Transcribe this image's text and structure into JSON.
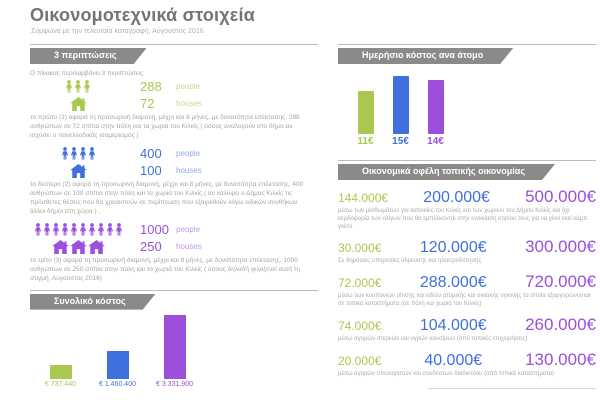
{
  "page": {
    "title": "Οικονομοτεχνικά στοιχεία",
    "subtitle": "Σύμφωνα με την τελευταία καταγραφή, Αύγουστος 2016"
  },
  "colors": {
    "green": "#aac84f",
    "blue": "#4070dd",
    "purple": "#9b4fdc",
    "banner_gray": "#8a8a8a",
    "body_text_gray": "#a5a5a5"
  },
  "sections": {
    "cases_header": "3 περιπτώσεις",
    "intro": "Ο πίνακας περιλαμβάνει 3 περιπτώσεις",
    "cases": [
      {
        "people": "288",
        "people_unit": "people",
        "houses": "72",
        "houses_unit": "houses",
        "people_icons": 3,
        "house_icons": 1,
        "color": "#aac84f",
        "unit_color": "#c8d894",
        "icon_color": "#aac84f",
        "description": "το πρώτο (1) αφορά τη προσωρινή διαμονή, μέχρι και 8 μήνες, με δυνατότητα επέκτασης, 288 ανθρώπων σε 72 σπίτια στην πόλη και τα χωριά του Κιλκίς ( όσους αναλογούν στο δήμο αν ισχύσει ο πανελλαδικός ισομερισμός )"
      },
      {
        "people": "400",
        "people_unit": "people",
        "houses": "100",
        "houses_unit": "houses",
        "people_icons": 4,
        "house_icons": 1,
        "color": "#4070dd",
        "unit_color": "#92abe8",
        "icon_color": "#4070dd",
        "description": "το δεύτερο (2) αφορά τη προσωρινή διαμονή, μέχρι και 8 μήνες, με δυνατότητα επέκτασης, 400 ανθρώπων σε 100 σπίτια στην πόλη και τα χωριά του Κιλκίς ( αν καλύψει ο Δήμος Κιλκίς τις πρόσθετες θέσεις που θα χρειαστούν σε περίπτωση που εξαιρεθούν λόγω ειδικών συνθήκων άλλοι δήμοι στη χώρα ) ,"
      },
      {
        "people": "1000",
        "people_unit": "people",
        "houses": "250",
        "houses_unit": "houses",
        "people_icons": 10,
        "house_icons": 3,
        "color": "#9b4fdc",
        "unit_color": "#c49ae8",
        "icon_color": "#9b4fdc",
        "description": "το τρίτο (3) αφορά τη προσωρινή διαμονή, μέχρι και 8 μήνες, με δυνατότητα επέκτασης, 1000 ανθρώπων σε 250 σπίτια στην πόλη και τα χωριά του Κιλκίς ( όσους δηλαδή φιλοξενεί αυτή τη στιγμή, Αυγούστος 2016)"
      }
    ],
    "total_cost_header": "Συνολικό κόστος",
    "daily_cost_header": "Ημερήσιο κόστος ανα άτομο",
    "benefits_header": "Οικονομικά οφέλη τοπικής οικονομίας"
  },
  "chart_data": [
    {
      "type": "bar",
      "title": "Συνολικό κόστος",
      "values": [
        737440,
        1460400,
        3331900
      ],
      "labels": [
        "€ 737.440",
        "€ 1.460.400",
        "€ 3.331.900"
      ],
      "colors": [
        "#aac84f",
        "#4070dd",
        "#9b4fdc"
      ],
      "ylim": [
        0,
        3331900
      ],
      "legend": "none",
      "grid": false
    },
    {
      "type": "bar",
      "title": "Ημερήσιο κόστος ανα άτομο",
      "values": [
        11,
        15,
        14
      ],
      "labels": [
        "11€",
        "15€",
        "14€"
      ],
      "colors": [
        "#aac84f",
        "#4070dd",
        "#9b4fdc"
      ],
      "ylim": [
        0,
        15
      ],
      "legend": "none",
      "grid": false
    },
    {
      "type": "table",
      "title": "Οικονομικά οφέλη τοπικής οικονομίας",
      "colors": [
        "#aac84f",
        "#4070dd",
        "#9b4fdc"
      ],
      "rows": [
        {
          "values": [
            "144.000€",
            "200.000€",
            "500.000€"
          ],
          "description": "μέσω των μισθωμάτων για κατοικίες του Κιλκίς και των χωριών του Δήμου Κιλκίς και όχι κερδοφορία των ολίγων που θα εμπλέκονται στην ενοικίαση κτιρίου τους για να γίνει εκεί κάμπ γκέτο"
        },
        {
          "values": [
            "30.000€",
            "120.000€",
            "300.000€"
          ],
          "description": "Σε δημόσιες υπηρεσίες ύδρευσης και ηλεκτροδότησης"
        },
        {
          "values": [
            "72.000€",
            "288.000€",
            "720.000€"
          ],
          "description": "μέσω των κουπονιών σίτισης και ειδών ατομικής και οικιακής υγιεινής τα οποία εξαργυρώνονται σε τοπικά καταστήματα (σε πόλη και χωριά του Κιλκίς)"
        },
        {
          "values": [
            "74.000€",
            "104.000€",
            "260.000€"
          ],
          "description": "μέσω αγορών στερεών και υγρών καυσίμων (από τοπικές επιχειρήσεις)"
        },
        {
          "values": [
            "20.000€",
            "40.000€",
            "130.000€"
          ],
          "description": "μέσω αγορών υπολογιστών και συνδέσεων διαδικτύου (από τοπικά καταστήματα)"
        }
      ]
    }
  ]
}
